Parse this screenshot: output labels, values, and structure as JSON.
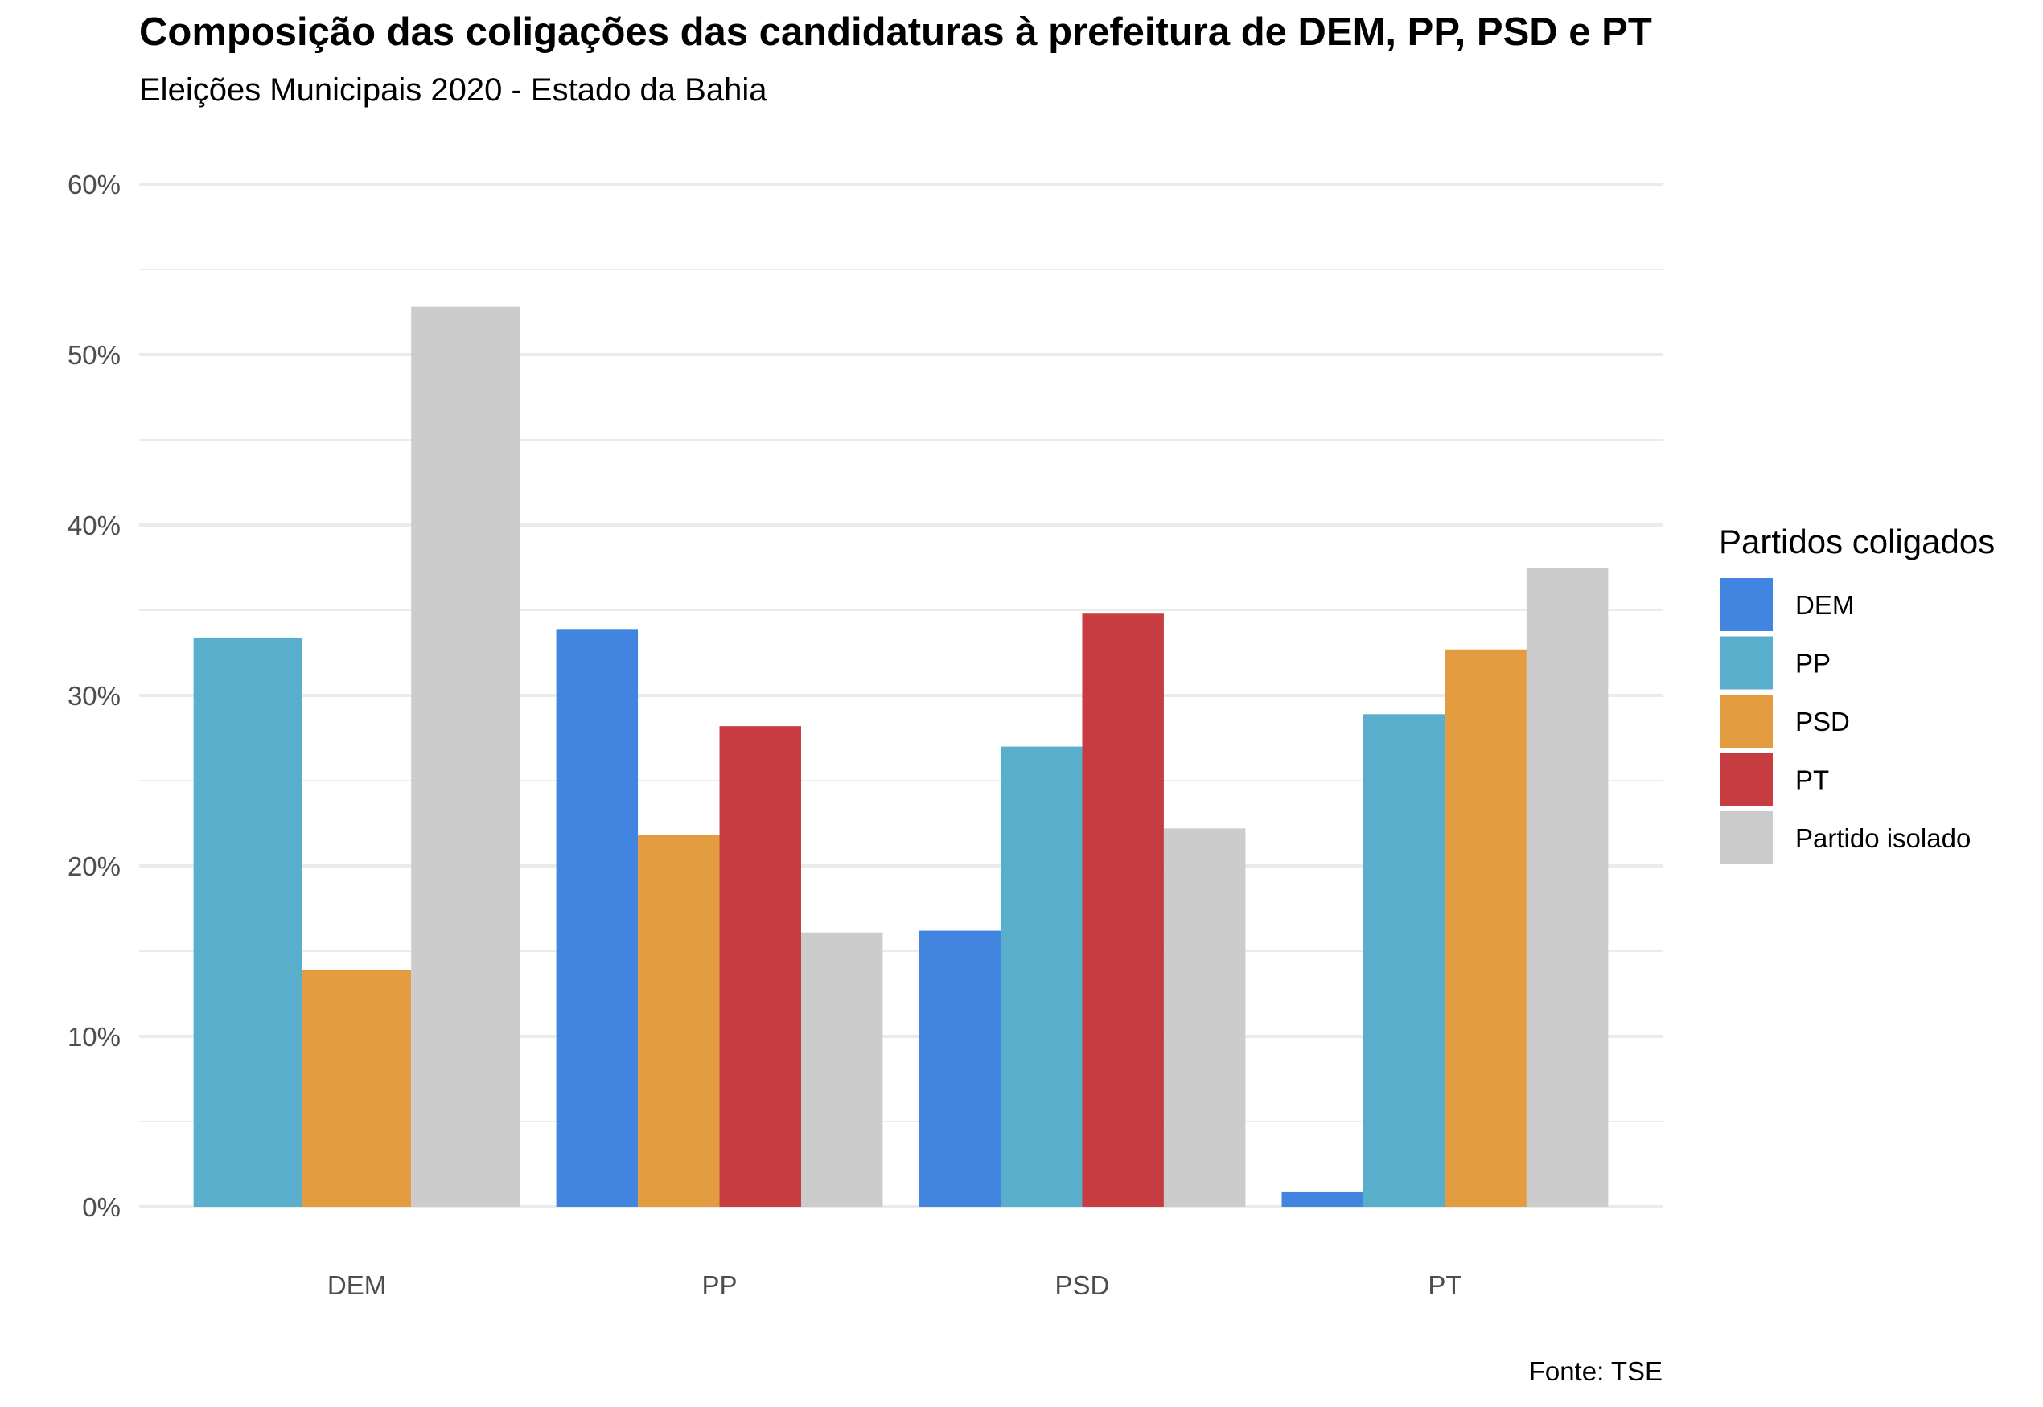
{
  "chart_data": {
    "type": "bar",
    "title": "Composição das coligações das candidaturas à prefeitura de DEM, PP, PSD e PT",
    "subtitle": "Eleições Municipais 2020 - Estado da Bahia",
    "caption": "Fonte: TSE",
    "xlabel": "",
    "ylabel": "",
    "categories": [
      "DEM",
      "PP",
      "PSD",
      "PT"
    ],
    "yticks": [
      "0%",
      "10%",
      "20%",
      "30%",
      "40%",
      "50%",
      "60%"
    ],
    "ylim": [
      0,
      60
    ],
    "grid": true,
    "legend": {
      "title": "Partidos coligados",
      "position": "right"
    },
    "series": [
      {
        "name": "DEM",
        "color": "#4285e1",
        "values": [
          null,
          33.9,
          16.2,
          0.9
        ]
      },
      {
        "name": "PP",
        "color": "#58aecb",
        "values": [
          33.4,
          null,
          27.0,
          28.9
        ]
      },
      {
        "name": "PSD",
        "color": "#e39c3f",
        "values": [
          13.9,
          21.8,
          null,
          32.7
        ]
      },
      {
        "name": "PT",
        "color": "#c73c40",
        "values": [
          null,
          28.2,
          34.8,
          null
        ]
      },
      {
        "name": "Partido isolado",
        "color": "#cccccc",
        "values": [
          52.8,
          16.1,
          22.2,
          37.5
        ]
      }
    ]
  }
}
